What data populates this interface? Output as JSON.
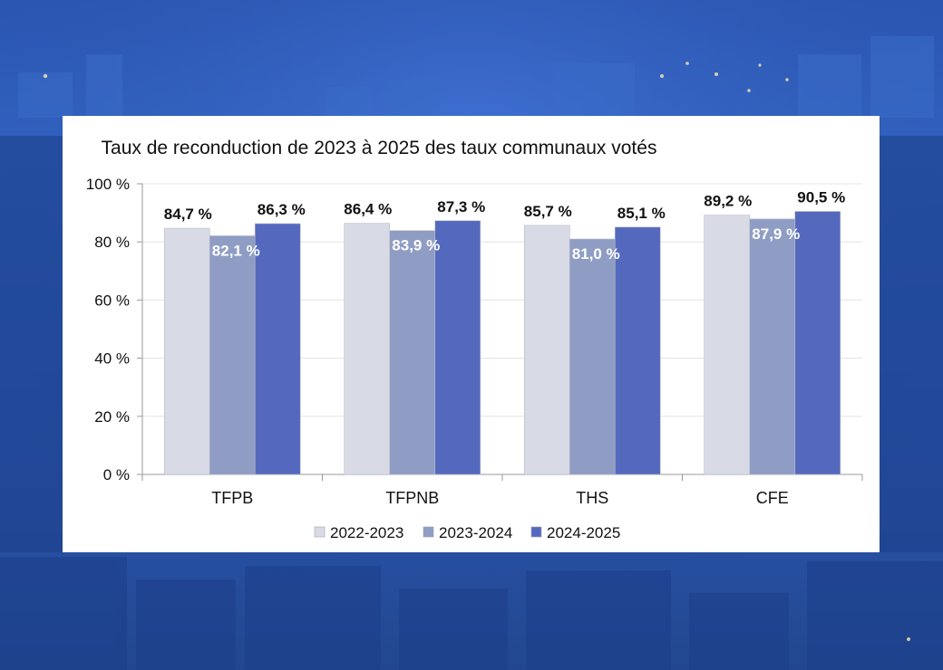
{
  "chart_data": {
    "type": "bar",
    "title": "Taux de reconduction de 2023 à 2025 des taux communaux votés",
    "categories": [
      "TFPB",
      "TFPNB",
      "THS",
      "CFE"
    ],
    "series": [
      {
        "name": "2022-2023",
        "values": [
          84.7,
          86.4,
          85.7,
          89.2
        ],
        "labels": [
          "84,7 %",
          "86,4 %",
          "85,7 %",
          "89,2 %"
        ],
        "color": "#d8dbe6",
        "label_color": "#111111"
      },
      {
        "name": "2023-2024",
        "values": [
          82.1,
          83.9,
          81.0,
          87.9
        ],
        "labels": [
          "82,1 %",
          "83,9 %",
          "81,0 %",
          "87,9 %"
        ],
        "color": "#8f9dc4",
        "label_color": "#ffffff"
      },
      {
        "name": "2024-2025",
        "values": [
          86.3,
          87.3,
          85.1,
          90.5
        ],
        "labels": [
          "86,3 %",
          "87,3 %",
          "85,1 %",
          "90,5 %"
        ],
        "color": "#5469be",
        "label_color": "#111111"
      }
    ],
    "yticks": [
      {
        "value": 0,
        "label": "0 %"
      },
      {
        "value": 20,
        "label": "20 %"
      },
      {
        "value": 40,
        "label": "40 %"
      },
      {
        "value": 60,
        "label": "60 %"
      },
      {
        "value": 80,
        "label": "80 %"
      },
      {
        "value": 100,
        "label": "100 %"
      }
    ],
    "ylim": [
      0,
      100
    ],
    "xlabel": "",
    "ylabel": "",
    "grid": true,
    "legend_position": "bottom"
  }
}
